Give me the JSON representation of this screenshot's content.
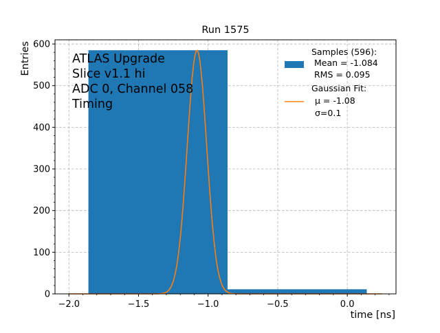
{
  "chart_data": {
    "type": "bar",
    "title": "Run 1575",
    "xlabel": "time [ns]",
    "ylabel": "Entries",
    "xlim": [
      -2.1,
      0.35
    ],
    "ylim": [
      0,
      610
    ],
    "xticks": [
      -2.0,
      -1.5,
      -1.0,
      -0.5,
      0.0
    ],
    "xtick_labels": [
      "−2.0",
      "−1.5",
      "−1.0",
      "−0.5",
      "0.0"
    ],
    "yticks": [
      0,
      100,
      200,
      300,
      400,
      500,
      600
    ],
    "ytick_labels": [
      "0",
      "100",
      "200",
      "300",
      "400",
      "500",
      "600"
    ],
    "grid": true,
    "bins": [
      {
        "x0": -1.86,
        "x1": -0.86,
        "value": 585
      },
      {
        "x0": -0.86,
        "x1": 0.14,
        "value": 11
      }
    ],
    "gauss_fit": {
      "amplitude": 585,
      "mu": -1.08,
      "sigma": 0.07,
      "x_range": [
        -2.0,
        0.25
      ]
    },
    "annotation": [
      "ATLAS Upgrade",
      "Slice v1.1 hi",
      "ADC 0, Channel 058",
      "Timing"
    ],
    "legend": {
      "placement": "top-right",
      "samples": [
        "Samples (596):",
        " Mean = -1.084",
        " RMS = 0.095"
      ],
      "fit": [
        "Gaussian Fit:",
        "μ = -1.08",
        "σ=0.1"
      ]
    },
    "colors": {
      "bars": "#1f77b4",
      "fit": "#ff7f0e"
    }
  }
}
